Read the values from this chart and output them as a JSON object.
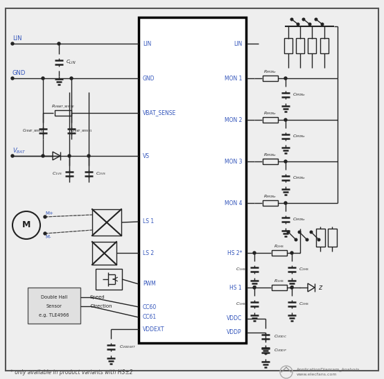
{
  "bg_color": "#eeeeee",
  "line_color": "#222222",
  "blue_color": "#3355bb",
  "red_color": "#cc2222",
  "footnote": "* only available in product variants with HS±2",
  "watermark_line1": "ApplicationDiagram_Analysis",
  "watermark_line2": "www.elecfans.com",
  "ic_left_pins": [
    "LIN",
    "GND",
    "VBAT_SENSE",
    "VS",
    "LS 1",
    "LS 2",
    "PWM",
    "CC60",
    "CC61",
    "VDDEXT"
  ],
  "ic_right_pins": [
    "LIN",
    "MON 1",
    "MON 2",
    "MON 3",
    "MON 4",
    "HS 2*",
    "HS 1",
    "VDDC",
    "VDDP"
  ]
}
